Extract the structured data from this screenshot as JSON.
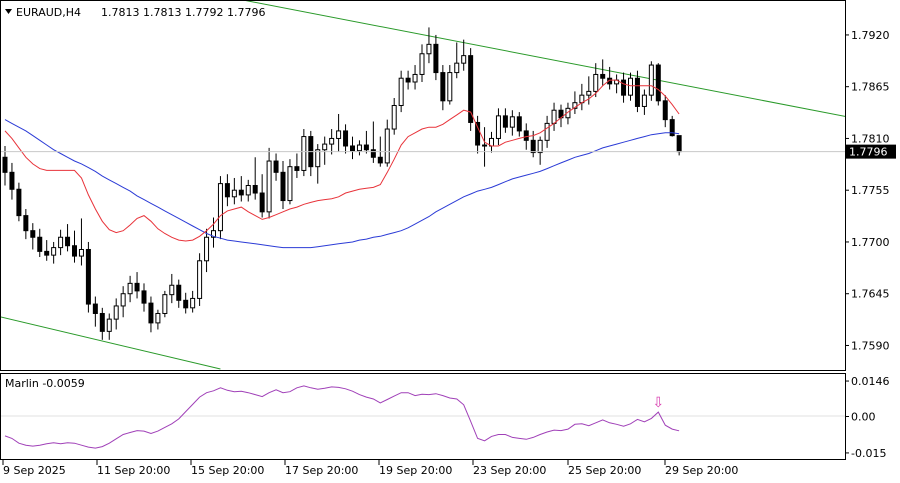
{
  "header": {
    "symbol_tf": "EURAUD,H4",
    "ohlc": "1.7813 1.7813 1.7792 1.7796"
  },
  "indicator": {
    "label": "Marlin -0.0059"
  },
  "colors": {
    "background": "#ffffff",
    "frame": "#000000",
    "candle": "#000000",
    "ma_fast": "#e8333a",
    "ma_slow": "#2b3bd6",
    "trendline": "#2a9a2a",
    "oscillator": "#a040b8",
    "arrow": "#d93fb0",
    "price_marker": "#000000"
  },
  "chart_data": [
    {
      "type": "candlestick",
      "title": "EURAUD,H4",
      "ylim": [
        1.7565,
        1.7955
      ],
      "y_ticks": [
        "1.7920",
        "1.7865",
        "1.7810",
        "1.7755",
        "1.7700",
        "1.7645",
        "1.7590"
      ],
      "x_ticks": [
        "9 Sep 2025",
        "11 Sep 20:00",
        "15 Sep 20:00",
        "17 Sep 20:00",
        "19 Sep 20:00",
        "23 Sep 20:00",
        "25 Sep 20:00",
        "29 Sep 20:00"
      ],
      "current_price": "1.7796",
      "grid": false,
      "candles": [
        [
          1.779,
          1.7802,
          1.776,
          1.7774
        ],
        [
          1.7774,
          1.7784,
          1.7745,
          1.7756
        ],
        [
          1.7756,
          1.7763,
          1.7722,
          1.7728
        ],
        [
          1.7728,
          1.7735,
          1.7703,
          1.7712
        ],
        [
          1.7712,
          1.772,
          1.7692,
          1.7705
        ],
        [
          1.7705,
          1.7714,
          1.7684,
          1.769
        ],
        [
          1.769,
          1.7702,
          1.768,
          1.7686
        ],
        [
          1.7686,
          1.77,
          1.7677,
          1.7694
        ],
        [
          1.7694,
          1.7713,
          1.7686,
          1.7705
        ],
        [
          1.7705,
          1.7719,
          1.769,
          1.7696
        ],
        [
          1.7696,
          1.7712,
          1.7678,
          1.7685
        ],
        [
          1.7685,
          1.7725,
          1.7675,
          1.7692
        ],
        [
          1.7692,
          1.77,
          1.7625,
          1.7634
        ],
        [
          1.7634,
          1.7642,
          1.761,
          1.7624
        ],
        [
          1.7624,
          1.763,
          1.7596,
          1.7605
        ],
        [
          1.7605,
          1.7624,
          1.7596,
          1.7618
        ],
        [
          1.7618,
          1.764,
          1.7607,
          1.7632
        ],
        [
          1.7632,
          1.7653,
          1.762,
          1.7645
        ],
        [
          1.7645,
          1.7664,
          1.7636,
          1.7656
        ],
        [
          1.7656,
          1.7668,
          1.764,
          1.7648
        ],
        [
          1.7648,
          1.7656,
          1.7626,
          1.7635
        ],
        [
          1.7635,
          1.7642,
          1.7604,
          1.7614
        ],
        [
          1.7614,
          1.7628,
          1.7607,
          1.7624
        ],
        [
          1.7624,
          1.7648,
          1.762,
          1.7644
        ],
        [
          1.7644,
          1.7666,
          1.7635,
          1.7654
        ],
        [
          1.7654,
          1.766,
          1.763,
          1.7638
        ],
        [
          1.7638,
          1.7646,
          1.7624,
          1.763
        ],
        [
          1.763,
          1.7648,
          1.7625,
          1.764
        ],
        [
          1.764,
          1.7688,
          1.7632,
          1.768
        ],
        [
          1.768,
          1.7714,
          1.7668,
          1.7705
        ],
        [
          1.7705,
          1.7726,
          1.7694,
          1.7712
        ],
        [
          1.7712,
          1.777,
          1.7703,
          1.7762
        ],
        [
          1.7762,
          1.7772,
          1.7738,
          1.7748
        ],
        [
          1.7748,
          1.7768,
          1.774,
          1.7755
        ],
        [
          1.7755,
          1.777,
          1.7743,
          1.775
        ],
        [
          1.775,
          1.7766,
          1.7743,
          1.776
        ],
        [
          1.776,
          1.779,
          1.7745,
          1.7752
        ],
        [
          1.7752,
          1.7772,
          1.7726,
          1.7732
        ],
        [
          1.7732,
          1.78,
          1.7725,
          1.7786
        ],
        [
          1.7786,
          1.7794,
          1.7765,
          1.7774
        ],
        [
          1.7774,
          1.7786,
          1.7735,
          1.7744
        ],
        [
          1.7744,
          1.7788,
          1.774,
          1.778
        ],
        [
          1.778,
          1.7794,
          1.7768,
          1.7776
        ],
        [
          1.7776,
          1.782,
          1.777,
          1.7812
        ],
        [
          1.7812,
          1.7818,
          1.777,
          1.778
        ],
        [
          1.778,
          1.7804,
          1.7762,
          1.7798
        ],
        [
          1.7798,
          1.7812,
          1.7782,
          1.7804
        ],
        [
          1.7804,
          1.782,
          1.7793,
          1.781
        ],
        [
          1.781,
          1.7836,
          1.7796,
          1.7818
        ],
        [
          1.7818,
          1.7825,
          1.7794,
          1.7802
        ],
        [
          1.7802,
          1.7812,
          1.7788,
          1.7797
        ],
        [
          1.7797,
          1.7808,
          1.7792,
          1.7803
        ],
        [
          1.7803,
          1.7818,
          1.7794,
          1.7798
        ],
        [
          1.7798,
          1.7828,
          1.7784,
          1.779
        ],
        [
          1.779,
          1.7812,
          1.778,
          1.7784
        ],
        [
          1.7784,
          1.783,
          1.778,
          1.782
        ],
        [
          1.782,
          1.7853,
          1.7814,
          1.7845
        ],
        [
          1.7845,
          1.7882,
          1.7838,
          1.7874
        ],
        [
          1.7874,
          1.7882,
          1.7862,
          1.787
        ],
        [
          1.787,
          1.7888,
          1.7862,
          1.7878
        ],
        [
          1.7878,
          1.791,
          1.787,
          1.79
        ],
        [
          1.79,
          1.7928,
          1.789,
          1.791
        ],
        [
          1.791,
          1.792,
          1.7872,
          1.788
        ],
        [
          1.788,
          1.7888,
          1.784,
          1.785
        ],
        [
          1.785,
          1.7888,
          1.7846,
          1.788
        ],
        [
          1.788,
          1.7912,
          1.7874,
          1.789
        ],
        [
          1.789,
          1.7915,
          1.7882,
          1.7898
        ],
        [
          1.7898,
          1.7906,
          1.7818,
          1.7827
        ],
        [
          1.7827,
          1.7834,
          1.7794,
          1.7803
        ],
        [
          1.7803,
          1.7822,
          1.778,
          1.7802
        ],
        [
          1.7802,
          1.7817,
          1.7795,
          1.781
        ],
        [
          1.781,
          1.7842,
          1.7803,
          1.7834
        ],
        [
          1.7834,
          1.7842,
          1.7816,
          1.7822
        ],
        [
          1.7822,
          1.784,
          1.7813,
          1.7833
        ],
        [
          1.7833,
          1.7838,
          1.7812,
          1.7818
        ],
        [
          1.7818,
          1.7826,
          1.7798,
          1.7808
        ],
        [
          1.7808,
          1.7818,
          1.779,
          1.7795
        ],
        [
          1.7795,
          1.7812,
          1.7782,
          1.7808
        ],
        [
          1.7808,
          1.7834,
          1.78,
          1.7826
        ],
        [
          1.7826,
          1.7848,
          1.7818,
          1.784
        ],
        [
          1.784,
          1.7846,
          1.7822,
          1.7832
        ],
        [
          1.7832,
          1.7848,
          1.7825,
          1.7842
        ],
        [
          1.7842,
          1.786,
          1.7836,
          1.7848
        ],
        [
          1.7848,
          1.7868,
          1.784,
          1.7856
        ],
        [
          1.7856,
          1.7876,
          1.7846,
          1.786
        ],
        [
          1.786,
          1.789,
          1.7854,
          1.7878
        ],
        [
          1.7878,
          1.7894,
          1.7866,
          1.7874
        ],
        [
          1.7874,
          1.7886,
          1.7862,
          1.7868
        ],
        [
          1.7868,
          1.7878,
          1.7858,
          1.7872
        ],
        [
          1.7872,
          1.788,
          1.7848,
          1.7856
        ],
        [
          1.7856,
          1.788,
          1.785,
          1.7874
        ],
        [
          1.7874,
          1.7882,
          1.7838,
          1.7844
        ],
        [
          1.7844,
          1.7862,
          1.7835,
          1.7856
        ],
        [
          1.7856,
          1.7892,
          1.785,
          1.7888
        ],
        [
          1.7888,
          1.789,
          1.7845,
          1.785
        ],
        [
          1.785,
          1.7856,
          1.7822,
          1.783
        ],
        [
          1.783,
          1.7834,
          1.7812,
          1.7813
        ],
        [
          1.7813,
          1.7813,
          1.7792,
          1.7796
        ]
      ],
      "ma_fast": [
        1.7818,
        1.781,
        1.78,
        1.779,
        1.7783,
        1.7778,
        1.7776,
        1.7776,
        1.7776,
        1.7776,
        1.7776,
        1.7768,
        1.775,
        1.7735,
        1.7722,
        1.7713,
        1.771,
        1.7712,
        1.7718,
        1.7725,
        1.7728,
        1.7722,
        1.7714,
        1.7709,
        1.7705,
        1.7702,
        1.7701,
        1.7702,
        1.7706,
        1.7712,
        1.7719,
        1.7728,
        1.7733,
        1.7735,
        1.7737,
        1.7732,
        1.7728,
        1.7724,
        1.7726,
        1.7729,
        1.7732,
        1.7735,
        1.7737,
        1.774,
        1.7742,
        1.7744,
        1.7745,
        1.7746,
        1.7748,
        1.7752,
        1.7754,
        1.7756,
        1.7757,
        1.7758,
        1.7761,
        1.7774,
        1.7788,
        1.7803,
        1.7812,
        1.7816,
        1.782,
        1.7822,
        1.7822,
        1.7825,
        1.783,
        1.7835,
        1.784,
        1.7838,
        1.7822,
        1.7806,
        1.7802,
        1.7802,
        1.7806,
        1.7808,
        1.781,
        1.7812,
        1.7813,
        1.7816,
        1.7821,
        1.7826,
        1.7832,
        1.7838,
        1.7843,
        1.7848,
        1.7852,
        1.7858,
        1.7866,
        1.7872,
        1.7872,
        1.7868,
        1.7866,
        1.7866,
        1.7866,
        1.7866,
        1.7862,
        1.7855,
        1.7846,
        1.7836
      ],
      "ma_slow": [
        1.783,
        1.7826,
        1.7822,
        1.7818,
        1.7813,
        1.7808,
        1.7803,
        1.7798,
        1.7794,
        1.779,
        1.7786,
        1.7783,
        1.7779,
        1.7775,
        1.777,
        1.7766,
        1.7762,
        1.7758,
        1.7754,
        1.7749,
        1.7745,
        1.7741,
        1.7737,
        1.7733,
        1.7729,
        1.7725,
        1.7721,
        1.7717,
        1.7713,
        1.7709,
        1.7706,
        1.7704,
        1.7702,
        1.7701,
        1.77,
        1.7699,
        1.7698,
        1.7697,
        1.7696,
        1.7695,
        1.7694,
        1.7694,
        1.7694,
        1.7694,
        1.7694,
        1.7695,
        1.7696,
        1.7697,
        1.7698,
        1.7699,
        1.77,
        1.7702,
        1.7703,
        1.7705,
        1.7706,
        1.7708,
        1.771,
        1.7712,
        1.7715,
        1.7719,
        1.7723,
        1.7727,
        1.7732,
        1.7736,
        1.774,
        1.7744,
        1.7748,
        1.7751,
        1.7754,
        1.7756,
        1.7758,
        1.7761,
        1.7764,
        1.7767,
        1.7769,
        1.7771,
        1.7773,
        1.7775,
        1.7778,
        1.7781,
        1.7784,
        1.7787,
        1.779,
        1.7792,
        1.7794,
        1.7797,
        1.78,
        1.7802,
        1.7804,
        1.7806,
        1.7808,
        1.781,
        1.7812,
        1.7814,
        1.7815,
        1.7816,
        1.7816,
        1.7815
      ],
      "trendlines": [
        {
          "name": "upper",
          "start": {
            "bar": 0,
            "price": 1.8006
          },
          "end": {
            "bar": 124,
            "price": 1.7829
          }
        },
        {
          "name": "lower",
          "start": {
            "bar": -1,
            "price": 1.7621
          },
          "end": {
            "bar": 31,
            "price": 1.7565
          }
        }
      ]
    },
    {
      "type": "line",
      "title": "Marlin -0.0059",
      "ylim": [
        -0.0175,
        0.0175
      ],
      "y_ticks": [
        "0.0146",
        "0.00",
        "-0.015"
      ],
      "value_label": "-0.0059",
      "marker": {
        "symbol": "⇩",
        "bar": 94
      },
      "series": [
        {
          "name": "Marlin",
          "values": [
            -0.008,
            -0.009,
            -0.011,
            -0.0118,
            -0.0122,
            -0.0118,
            -0.0112,
            -0.0108,
            -0.0112,
            -0.0108,
            -0.011,
            -0.0118,
            -0.0126,
            -0.013,
            -0.0124,
            -0.011,
            -0.0092,
            -0.0074,
            -0.0066,
            -0.0058,
            -0.006,
            -0.007,
            -0.006,
            -0.0045,
            -0.003,
            -0.001,
            0.002,
            0.005,
            0.008,
            0.0098,
            0.0106,
            0.0118,
            0.0108,
            0.0102,
            0.0104,
            0.0098,
            0.009,
            0.0082,
            0.0098,
            0.011,
            0.0098,
            0.0102,
            0.0118,
            0.0126,
            0.0118,
            0.0112,
            0.0116,
            0.0122,
            0.012,
            0.0114,
            0.0104,
            0.009,
            0.008,
            0.0072,
            0.0056,
            0.007,
            0.0084,
            0.0098,
            0.0098,
            0.0086,
            0.0092,
            0.009,
            0.0094,
            0.0086,
            0.0076,
            0.0072,
            0.0048,
            -0.002,
            -0.009,
            -0.01,
            -0.0082,
            -0.0074,
            -0.0074,
            -0.0086,
            -0.009,
            -0.0094,
            -0.0086,
            -0.0074,
            -0.0064,
            -0.0056,
            -0.0058,
            -0.0052,
            -0.0032,
            -0.003,
            -0.0038,
            -0.0026,
            -0.0014,
            -0.0026,
            -0.0032,
            -0.004,
            -0.003,
            -0.0012,
            -0.0022,
            -0.0008,
            0.0018,
            -0.0036,
            -0.0052,
            -0.0059
          ]
        }
      ]
    }
  ]
}
